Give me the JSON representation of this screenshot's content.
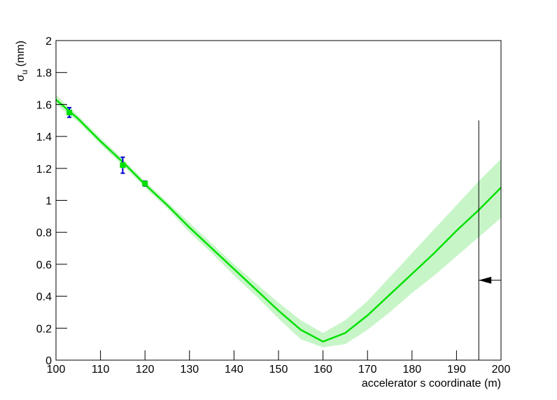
{
  "chart_data": {
    "type": "line",
    "xlabel": "accelerator s coordinate (m)",
    "ylabel": {
      "symbol": "σ",
      "subscript": "u",
      "unit": " (mm)"
    },
    "xlim": [
      100,
      200
    ],
    "ylim": [
      0,
      2
    ],
    "xticks": [
      100,
      110,
      120,
      130,
      140,
      150,
      160,
      170,
      180,
      190,
      200
    ],
    "yticks": [
      0,
      0.2,
      0.4,
      0.6,
      0.8,
      1,
      1.2,
      1.4,
      1.6,
      1.8,
      2
    ],
    "x": [
      100,
      105,
      110,
      115,
      120,
      125,
      130,
      135,
      140,
      145,
      150,
      155,
      160,
      165,
      170,
      175,
      180,
      185,
      190,
      195,
      200
    ],
    "curve": {
      "color": "#00e000",
      "values": [
        1.63,
        1.51,
        1.37,
        1.24,
        1.1,
        0.97,
        0.83,
        0.7,
        0.57,
        0.44,
        0.31,
        0.19,
        0.116,
        0.17,
        0.28,
        0.41,
        0.54,
        0.67,
        0.81,
        0.94,
        1.08
      ]
    },
    "band": {
      "color": "#c8f5c8",
      "upper": [
        1.66,
        1.53,
        1.39,
        1.26,
        1.12,
        0.99,
        0.86,
        0.73,
        0.6,
        0.48,
        0.36,
        0.25,
        0.17,
        0.25,
        0.37,
        0.52,
        0.67,
        0.82,
        0.97,
        1.12,
        1.26
      ],
      "lower": [
        1.6,
        1.49,
        1.35,
        1.22,
        1.08,
        0.95,
        0.8,
        0.67,
        0.53,
        0.4,
        0.26,
        0.13,
        0.08,
        0.1,
        0.19,
        0.3,
        0.42,
        0.53,
        0.65,
        0.77,
        0.89
      ]
    },
    "points": {
      "color": "#00e000",
      "error_color": "#0000cc",
      "x": [
        103,
        115,
        120
      ],
      "values": [
        1.55,
        1.22,
        1.105
      ],
      "errors": [
        0.03,
        0.05,
        0.015
      ]
    },
    "marker": {
      "x": 195,
      "ymax": 1.5,
      "arrow_y": 0.5
    }
  }
}
